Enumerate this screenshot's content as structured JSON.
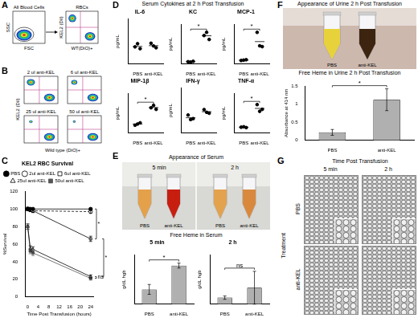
{
  "panels": [
    {
      "letter": "A",
      "plots": [
        {
          "title": "All Blood Cells",
          "x_label": "FSC",
          "y_label": "SSC"
        },
        {
          "title": "RBCs",
          "x_label": "WT(DiO)+",
          "y_label": "KEL2 (DiI)"
        }
      ]
    },
    {
      "letter": "B",
      "x_label": "Wild type (DiO)+",
      "y_label": "KEL2 (DiI)",
      "plots": [
        "2 ul anti-KEL",
        "6 ul anti-KEL",
        "25 ul anti-KEL",
        "50 ul anti-KEL"
      ]
    },
    {
      "letter": "C"
    },
    {
      "letter": "D",
      "title": "Serum Cytokines at 2 h Post Transfusion"
    },
    {
      "letter": "E",
      "photo_title": "Appearance of Serum",
      "times": [
        "5 min",
        "2 h"
      ],
      "tubes": [
        "PBS",
        "anti-KEL"
      ],
      "chart_title": "Free Heme in Serum"
    },
    {
      "letter": "F",
      "photo_title": "Appearance of Urine 2 h Post Transfusion",
      "tubes": [
        "PBS",
        "anti-KEL"
      ]
    },
    {
      "letter": "G",
      "title": "Time Post Transfusion",
      "columns": [
        "5 min",
        "2 h"
      ],
      "row_title": "Treatment",
      "rows": [
        "PBS",
        "anti-KEL"
      ]
    }
  ],
  "chart_data": [
    {
      "type": "line",
      "title": "KEL2 RBC Survival",
      "x_label": "Time Post Transfusion (hours)",
      "y_label": "%Survival",
      "x": [
        0,
        1,
        2,
        24
      ],
      "xlim": [
        -1,
        25
      ],
      "xticks": [
        0,
        4,
        8,
        12,
        16,
        20,
        24
      ],
      "ylim": [
        0,
        120
      ],
      "yticks": [
        0,
        20,
        40,
        60,
        80,
        100,
        120
      ],
      "grid": false,
      "legend": "top",
      "series": [
        {
          "name": "PBS",
          "color": "#000000",
          "marker": "circle",
          "line_style": "solid",
          "values": [
            100,
            100,
            100,
            100
          ],
          "errors": [
            1,
            1,
            1,
            1
          ]
        },
        {
          "name": "2ul anti-KEL",
          "color": "#000000",
          "marker": "open_circle",
          "line_style": "dashed",
          "values": [
            100,
            99,
            98,
            97
          ],
          "errors": [
            2,
            2,
            2,
            2
          ]
        },
        {
          "name": "6ul anti-KEL",
          "color": "#000000",
          "marker": "open_square",
          "line_style": "solid",
          "values": [
            100,
            99,
            98,
            66
          ],
          "errors": [
            2,
            2,
            2,
            3
          ]
        },
        {
          "name": "25ul anti-KEL",
          "color": "#000000",
          "marker": "open_triangle",
          "line_style": "solid",
          "values": [
            80,
            55,
            54,
            23
          ],
          "errors": [
            3,
            3,
            3,
            2
          ]
        },
        {
          "name": "50ul anti-KEL",
          "color": "#555555",
          "marker": "square",
          "line_style": "solid",
          "values": [
            80,
            52,
            50,
            21
          ],
          "errors": [
            3,
            3,
            3,
            2
          ]
        }
      ],
      "annotations": [
        {
          "text": "*",
          "between": [
            "PBS",
            "6ul anti-KEL"
          ]
        },
        {
          "text": "*",
          "between": [
            "6ul anti-KEL",
            "25ul anti-KEL"
          ]
        },
        {
          "text": "ns",
          "between": [
            "25ul anti-KEL",
            "50ul anti-KEL"
          ]
        }
      ]
    },
    {
      "type": "scatter",
      "title": "IL-6",
      "categories": [
        "PBS",
        "anti-KEL"
      ],
      "values": [
        [
          38,
          45,
          34
        ],
        [
          46,
          40,
          36
        ]
      ],
      "y_label": "pg/mL",
      "ylim": [
        0,
        100
      ],
      "tick_labels": "x",
      "marker": "circle",
      "color": "#000000"
    },
    {
      "type": "scatter",
      "title": "KC",
      "categories": [
        "PBS",
        "anti-KEL"
      ],
      "values": [
        [
          6,
          5,
          7
        ],
        [
          72,
          80,
          62
        ]
      ],
      "y_label": "pg/mL",
      "ylim": [
        0,
        100
      ],
      "tick_labels": "x",
      "marker": "circle",
      "color": "#000000",
      "annotations": [
        {
          "text": "*",
          "between": [
            "PBS",
            "anti-KEL"
          ]
        }
      ]
    },
    {
      "type": "scatter",
      "title": "MCP-1",
      "categories": [
        "PBS",
        "anti-KEL"
      ],
      "values": [
        [
          9,
          10,
          11
        ],
        [
          80,
          46,
          44
        ]
      ],
      "y_label": "pg/mL",
      "ylim": [
        0,
        100
      ],
      "tick_labels": "x",
      "marker": "circle",
      "color": "#000000",
      "annotations": [
        {
          "text": "*",
          "between": [
            "PBS",
            "anti-KEL"
          ]
        }
      ]
    },
    {
      "type": "scatter",
      "title": "MIP-1β",
      "categories": [
        "PBS",
        "anti-KEL"
      ],
      "values": [
        [
          20,
          23,
          26
        ],
        [
          64,
          70,
          60
        ]
      ],
      "y_label": "pg/mL",
      "ylim": [
        0,
        100
      ],
      "tick_labels": "x",
      "marker": "circle",
      "color": "#000000",
      "annotations": [
        {
          "text": "*",
          "between": [
            "PBS",
            "anti-KEL"
          ]
        }
      ]
    },
    {
      "type": "scatter",
      "title": "IFN-γ",
      "categories": [
        "PBS",
        "anti-KEL"
      ],
      "values": [
        [
          40,
          30,
          32
        ],
        [
          52,
          46,
          44
        ]
      ],
      "y_label": "pg/mL",
      "ylim": [
        0,
        100
      ],
      "tick_labels": "x",
      "marker": "circle",
      "color": "#000000"
    },
    {
      "type": "scatter",
      "title": "TNF-α",
      "categories": [
        "PBS",
        "anti-KEL"
      ],
      "values": [
        [
          15,
          16,
          14
        ],
        [
          72,
          55,
          60
        ]
      ],
      "y_label": "pg/mL",
      "ylim": [
        0,
        100
      ],
      "tick_labels": "x",
      "marker": "circle",
      "color": "#000000",
      "annotations": [
        {
          "text": "*",
          "between": [
            "PBS",
            "anti-KEL"
          ]
        }
      ]
    },
    {
      "type": "bar",
      "title": "5 min",
      "categories": [
        "PBS",
        "anti-KEL"
      ],
      "values": [
        0.18,
        0.47
      ],
      "errors": [
        0.06,
        0.03
      ],
      "y_label": "g/dL hgb",
      "ylim": [
        0,
        0.6
      ],
      "tick_labels": "x",
      "color": "#b0b0b0",
      "annotations": [
        {
          "text": "*",
          "between": [
            "PBS",
            "anti-KEL"
          ]
        }
      ]
    },
    {
      "type": "bar",
      "title": "2 h",
      "categories": [
        "PBS",
        "anti-KEL"
      ],
      "values": [
        0.08,
        0.2
      ],
      "errors": [
        0.02,
        0.2
      ],
      "y_label": "g/dL hgb",
      "ylim": [
        0,
        0.6
      ],
      "tick_labels": "x",
      "color": "#b0b0b0",
      "annotations": [
        {
          "text": "ns",
          "between": [
            "PBS",
            "anti-KEL"
          ]
        }
      ]
    },
    {
      "type": "bar",
      "title": "Free Heme in Urine 2 h Post Transfusion",
      "categories": [
        "PBS",
        "anti-KEL"
      ],
      "values": [
        0.22,
        1.12
      ],
      "errors": [
        0.08,
        0.3
      ],
      "y_label": "Absorbance at 414 nm",
      "ylim": [
        0,
        1.5
      ],
      "yticks": [
        0,
        0.5,
        1,
        1.5
      ],
      "color": "#b0b0b0",
      "annotations": [
        {
          "text": "*",
          "between": [
            "PBS",
            "anti-KEL"
          ]
        }
      ]
    }
  ]
}
